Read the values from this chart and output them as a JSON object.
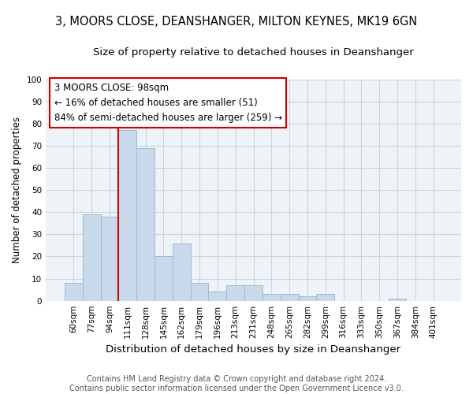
{
  "title_line1": "3, MOORS CLOSE, DEANSHANGER, MILTON KEYNES, MK19 6GN",
  "title_line2": "Size of property relative to detached houses in Deanshanger",
  "xlabel": "Distribution of detached houses by size in Deanshanger",
  "ylabel": "Number of detached properties",
  "bar_values": [
    8,
    39,
    38,
    77,
    69,
    20,
    26,
    8,
    4,
    7,
    7,
    3,
    3,
    2,
    3,
    0,
    0,
    0,
    1,
    0,
    0
  ],
  "bar_labels": [
    "60sqm",
    "77sqm",
    "94sqm",
    "111sqm",
    "128sqm",
    "145sqm",
    "162sqm",
    "179sqm",
    "196sqm",
    "213sqm",
    "231sqm",
    "248sqm",
    "265sqm",
    "282sqm",
    "299sqm",
    "316sqm",
    "333sqm",
    "350sqm",
    "367sqm",
    "384sqm",
    "401sqm"
  ],
  "bar_color": "#c8d9ec",
  "bar_edge_color": "#a0b8d8",
  "grid_color": "#c8d4e0",
  "background_color": "#eef3f8",
  "vline_color": "#cc0000",
  "vline_x": 2.5,
  "annotation_title": "3 MOORS CLOSE: 98sqm",
  "annotation_line1": "← 16% of detached houses are smaller (51)",
  "annotation_line2": "84% of semi-detached houses are larger (259) →",
  "annotation_box_color": "#ffffff",
  "annotation_box_edge": "#cc0000",
  "ylim": [
    0,
    100
  ],
  "yticks": [
    0,
    10,
    20,
    30,
    40,
    50,
    60,
    70,
    80,
    90,
    100
  ],
  "footer_line1": "Contains HM Land Registry data © Crown copyright and database right 2024.",
  "footer_line2": "Contains public sector information licensed under the Open Government Licence v3.0.",
  "title_fontsize": 10.5,
  "subtitle_fontsize": 9.5,
  "xlabel_fontsize": 9.5,
  "ylabel_fontsize": 8.5,
  "tick_fontsize": 7.5,
  "footer_fontsize": 7,
  "ann_fontsize": 8.5
}
